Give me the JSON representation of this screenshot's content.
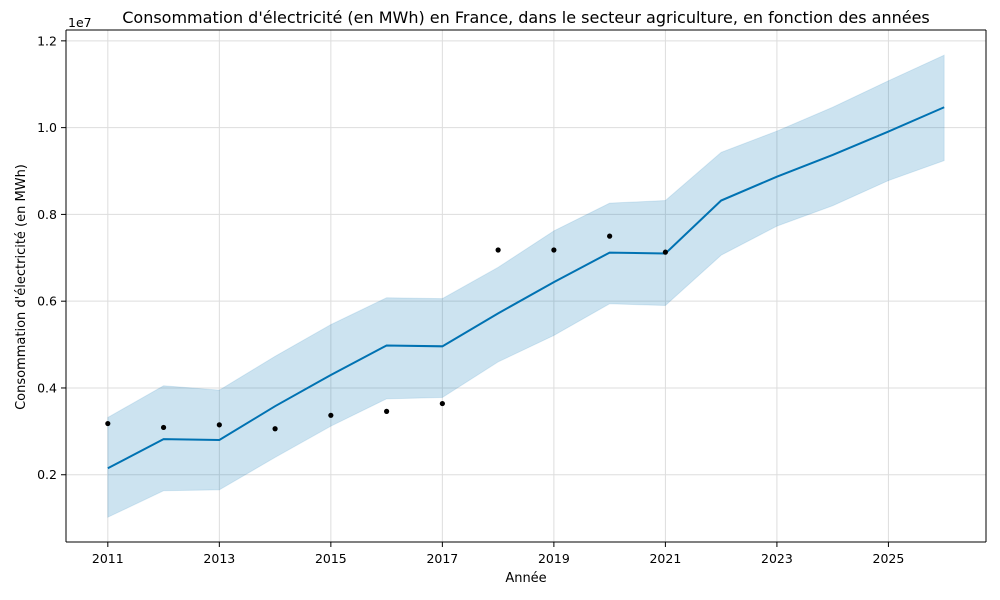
{
  "chart_data": {
    "type": "line",
    "title": "Consommation d'électricité (en MWh) en France, dans le secteur agriculture, en fonction des années",
    "xlabel": "Année",
    "ylabel": "Consommation d'électricité (en MWh)",
    "y_offset_label": "1e7",
    "xlim": [
      2010.25,
      2026.75
    ],
    "ylim": [
      450000,
      12250000
    ],
    "x_ticks": [
      2011,
      2013,
      2015,
      2017,
      2019,
      2021,
      2023,
      2025
    ],
    "x_tick_labels": [
      "2011",
      "2013",
      "2015",
      "2017",
      "2019",
      "2021",
      "2023",
      "2025"
    ],
    "y_ticks": [
      2000000,
      4000000,
      6000000,
      8000000,
      10000000,
      12000000
    ],
    "y_tick_labels": [
      "0.2",
      "0.4",
      "0.6",
      "0.8",
      "1.0",
      "1.2"
    ],
    "grid": true,
    "colors": {
      "forecast_line": "#0072b2",
      "interval_fill": "#0072b2",
      "observed_points": "#000000",
      "grid": "#dddddd"
    },
    "series": [
      {
        "kind": "observed",
        "x": [
          2011,
          2012,
          2013,
          2014,
          2015,
          2016,
          2017,
          2018,
          2019,
          2020,
          2021
        ],
        "values": [
          3180000,
          3090000,
          3150000,
          3060000,
          3370000,
          3460000,
          3640000,
          7180000,
          7180000,
          7500000,
          7130000
        ]
      },
      {
        "kind": "forecast",
        "x": [
          2011,
          2012,
          2013,
          2014,
          2015,
          2016,
          2017,
          2018,
          2019,
          2020,
          2021,
          2022,
          2023,
          2024,
          2025,
          2026
        ],
        "values": [
          2150000,
          2820000,
          2800000,
          3580000,
          4300000,
          4980000,
          4960000,
          5720000,
          6440000,
          7120000,
          7100000,
          8320000,
          8870000,
          9370000,
          9910000,
          10470000
        ],
        "lower": [
          1020000,
          1630000,
          1650000,
          2400000,
          3120000,
          3750000,
          3780000,
          4600000,
          5210000,
          5940000,
          5900000,
          7060000,
          7730000,
          8200000,
          8780000,
          9240000
        ],
        "upper": [
          3320000,
          4050000,
          3950000,
          4730000,
          5460000,
          6080000,
          6060000,
          6780000,
          7620000,
          8260000,
          8320000,
          9430000,
          9920000,
          10470000,
          11080000,
          11670000
        ]
      }
    ]
  }
}
